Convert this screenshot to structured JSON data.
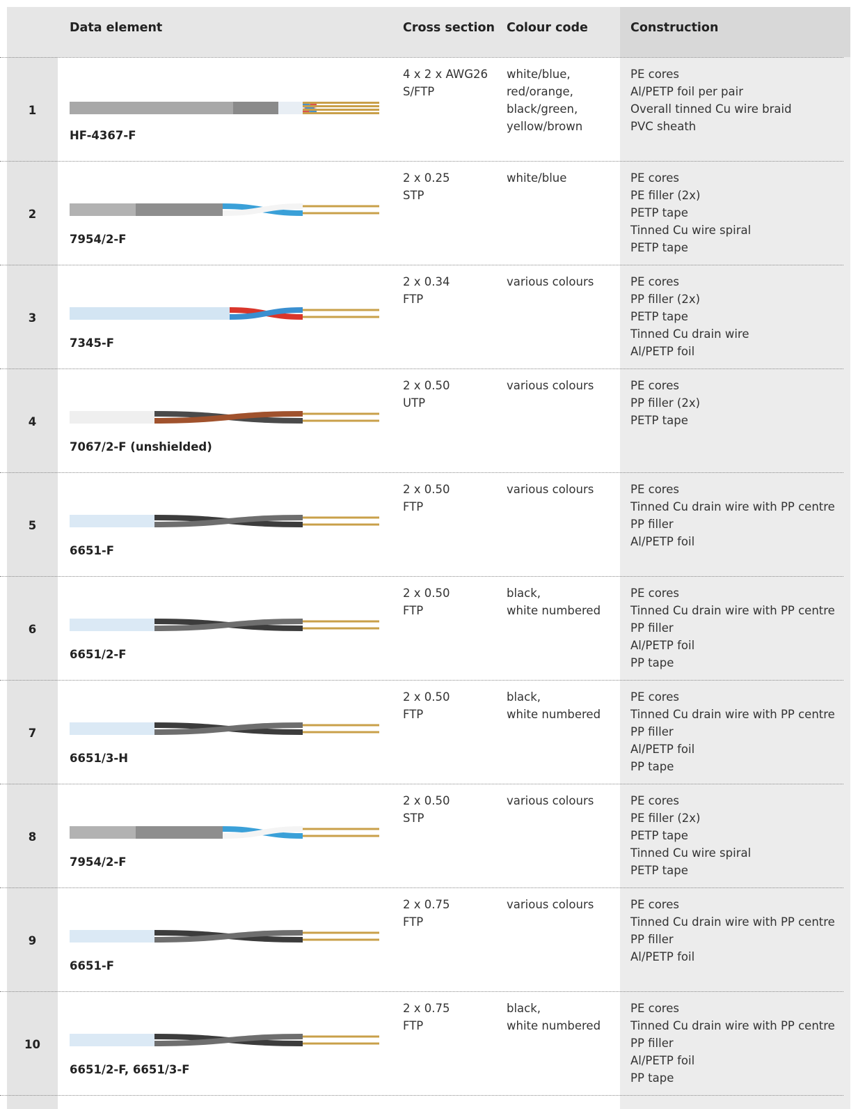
{
  "table": {
    "columns": [
      "Data element",
      "Cross section",
      "Colour code",
      "Construction"
    ],
    "rows": [
      {
        "number": "1",
        "name": "HF-4367-F",
        "cross_section": [
          "4 x 2 x AWG26",
          "S/FTP"
        ],
        "colour_code": [
          "white/blue,",
          "red/orange,",
          "black/green,",
          "yellow/brown"
        ],
        "construction": [
          "PE cores",
          "Al/PETP foil per pair",
          "Overall tinned Cu wire braid",
          "PVC sheath"
        ]
      },
      {
        "number": "2",
        "name": "7954/2-F",
        "cross_section": [
          "2 x 0.25",
          "STP"
        ],
        "colour_code": [
          "white/blue"
        ],
        "construction": [
          "PE cores",
          "PE filler (2x)",
          "PETP tape",
          "Tinned Cu wire spiral",
          "PETP tape"
        ]
      },
      {
        "number": "3",
        "name": "7345-F",
        "cross_section": [
          "2 x 0.34",
          "FTP"
        ],
        "colour_code": [
          "various colours"
        ],
        "construction": [
          "PE cores",
          "PP filler (2x)",
          "PETP tape",
          "Tinned Cu drain wire",
          "Al/PETP foil"
        ]
      },
      {
        "number": "4",
        "name": "7067/2-F (unshielded)",
        "cross_section": [
          "2 x 0.50",
          "UTP"
        ],
        "colour_code": [
          "various colours"
        ],
        "construction": [
          "PE cores",
          "PP filler (2x)",
          "PETP tape"
        ]
      },
      {
        "number": "5",
        "name": "6651-F",
        "cross_section": [
          "2 x 0.50",
          "FTP"
        ],
        "colour_code": [
          "various colours"
        ],
        "construction": [
          "PE cores",
          "Tinned Cu drain wire with PP centre",
          "PP filler",
          "Al/PETP foil"
        ]
      },
      {
        "number": "6",
        "name": "6651/2-F",
        "cross_section": [
          "2 x 0.50",
          "FTP"
        ],
        "colour_code": [
          "black,",
          "white numbered"
        ],
        "construction": [
          "PE cores",
          "Tinned Cu drain wire with PP centre",
          "PP filler",
          "Al/PETP foil",
          "PP tape"
        ]
      },
      {
        "number": "7",
        "name": "6651/3-H",
        "cross_section": [
          "2 x 0.50",
          "FTP"
        ],
        "colour_code": [
          "black,",
          "white numbered"
        ],
        "construction": [
          "PE cores",
          "Tinned Cu drain wire with PP centre",
          "PP filler",
          "Al/PETP foil",
          "PP tape"
        ]
      },
      {
        "number": "8",
        "name": "7954/2-F",
        "cross_section": [
          "2 x 0.50",
          "STP"
        ],
        "colour_code": [
          "various colours"
        ],
        "construction": [
          "PE cores",
          "PE filler (2x)",
          "PETP tape",
          "Tinned Cu wire spiral",
          "PETP tape"
        ]
      },
      {
        "number": "9",
        "name": "6651-F",
        "cross_section": [
          "2 x 0.75",
          "FTP"
        ],
        "colour_code": [
          "various colours"
        ],
        "construction": [
          "PE cores",
          "Tinned Cu drain wire with PP centre",
          "PP filler",
          "Al/PETP foil"
        ]
      },
      {
        "number": "10",
        "name": "6651/2-F, 6651/3-F",
        "cross_section": [
          "2 x 0.75",
          "FTP"
        ],
        "colour_code": [
          "black,",
          "white numbered"
        ],
        "construction": [
          "PE cores",
          "Tinned Cu drain wire with PP centre",
          "PP filler",
          "Al/PETP foil",
          "PP tape"
        ]
      }
    ]
  }
}
